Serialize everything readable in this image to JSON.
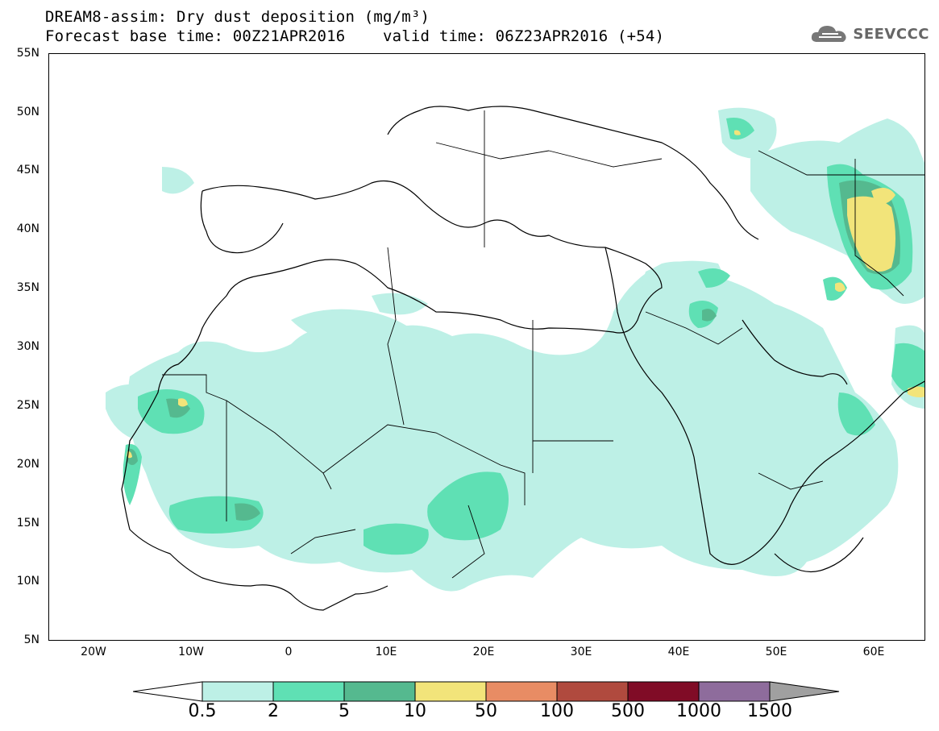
{
  "title": {
    "line1": "DREAM8-assim: Dry dust deposition (mg/m³)",
    "line2": "Forecast base time: 00Z21APR2016    valid time: 06Z23APR2016 (+54)"
  },
  "logo": {
    "text": "SEEVCCC",
    "icon": "cloud-icon"
  },
  "map": {
    "projection": "lat-lon",
    "lon_range": [
      -25,
      65
    ],
    "lat_range": [
      5,
      55
    ],
    "lat_ticks": [
      "55N",
      "50N",
      "45N",
      "40N",
      "35N",
      "30N",
      "25N",
      "20N",
      "15N",
      "10N",
      "5N"
    ],
    "lon_ticks": [
      "20W",
      "10W",
      "0",
      "10E",
      "20E",
      "30E",
      "40E",
      "50E",
      "60E"
    ]
  },
  "legend": {
    "labels": [
      "0.5",
      "2",
      "5",
      "10",
      "50",
      "100",
      "500",
      "1000",
      "1500"
    ],
    "colors": [
      "#bdf0e6",
      "#5fe0b4",
      "#55b98f",
      "#f2e47a",
      "#e88c64",
      "#b04a3e",
      "#800c26",
      "#8e6c9c"
    ],
    "under_color": "#ffffff",
    "over_color": "#a0a0a0"
  }
}
